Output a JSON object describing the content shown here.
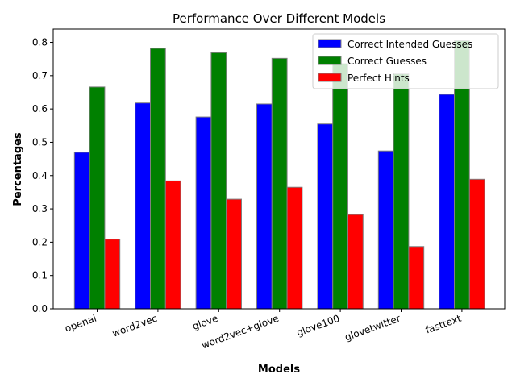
{
  "chart_data": {
    "type": "bar",
    "title": "Performance Over Different Models",
    "xlabel": "Models",
    "ylabel": "Percentages",
    "categories": [
      "openai",
      "word2vec",
      "glove",
      "word2vec+glove",
      "glove100",
      "glovetwitter",
      "fasttext"
    ],
    "series": [
      {
        "name": "Correct Intended Guesses",
        "color": "#0000ff",
        "values": [
          0.47,
          0.618,
          0.576,
          0.615,
          0.555,
          0.474,
          0.644
        ]
      },
      {
        "name": "Correct Guesses",
        "color": "#008000",
        "values": [
          0.666,
          0.782,
          0.769,
          0.752,
          0.736,
          0.705,
          0.805
        ]
      },
      {
        "name": "Perfect Hints",
        "color": "#ff0000",
        "values": [
          0.209,
          0.384,
          0.329,
          0.365,
          0.283,
          0.187,
          0.389
        ]
      }
    ],
    "ylim": [
      0,
      0.84
    ],
    "yticks": [
      "0.0",
      "0.1",
      "0.2",
      "0.3",
      "0.4",
      "0.5",
      "0.6",
      "0.7",
      "0.8"
    ],
    "grid": false,
    "legend_position": "top-right",
    "bar_edge_color": "#808080"
  }
}
